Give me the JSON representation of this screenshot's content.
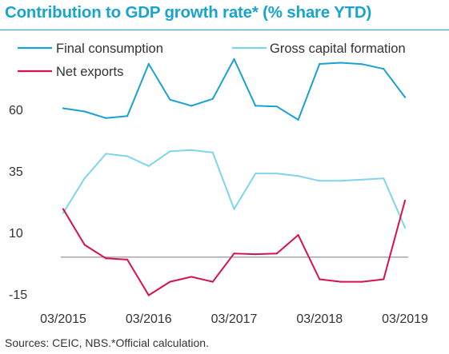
{
  "title": "Contribution to GDP growth rate* (% share YTD)",
  "footnote": "Sources: CEIC, NBS.*Official calculation.",
  "colors": {
    "title": "#19a3cf",
    "final": "#1aa1d3",
    "gross": "#7fd4ee",
    "net": "#d5124f",
    "zero": "#8a8a8a",
    "text": "#333333"
  },
  "chart_data": {
    "type": "line",
    "x": [
      "2015-03",
      "2015-06",
      "2015-09",
      "2015-12",
      "2016-03",
      "2016-06",
      "2016-09",
      "2016-12",
      "2017-03",
      "2017-06",
      "2017-09",
      "2017-12",
      "2018-03",
      "2018-06",
      "2018-09",
      "2018-12",
      "2019-03"
    ],
    "x_ticks": [
      "03/2015",
      "03/2016",
      "03/2017",
      "03/2018",
      "03/2019"
    ],
    "y_ticks": [
      "60",
      "35",
      "10",
      "-15"
    ],
    "ylim": [
      -20,
      85
    ],
    "grid": false,
    "legend": "top",
    "series": [
      {
        "name": "Final consumption",
        "color": "#1aa1d3",
        "values": [
          60.5,
          59.2,
          56.5,
          57.3,
          78.5,
          64.0,
          61.5,
          64.3,
          80.5,
          61.5,
          61.2,
          55.8,
          78.5,
          79.0,
          78.4,
          76.5,
          65.0
        ]
      },
      {
        "name": "Gross capital formation",
        "color": "#7fd4ee",
        "values": [
          18.0,
          32.0,
          42.0,
          41.0,
          37.0,
          43.0,
          43.5,
          42.5,
          19.5,
          34.0,
          34.0,
          33.0,
          31.0,
          31.0,
          31.5,
          32.0,
          12.0
        ]
      },
      {
        "name": "Net exports",
        "color": "#d5124f",
        "values": [
          19.5,
          5.0,
          -0.5,
          -1.0,
          -15.5,
          -10.0,
          -8.0,
          -10.0,
          1.5,
          1.2,
          1.5,
          9.0,
          -9.0,
          -10.0,
          -10.0,
          -9.0,
          23.0
        ]
      }
    ]
  }
}
